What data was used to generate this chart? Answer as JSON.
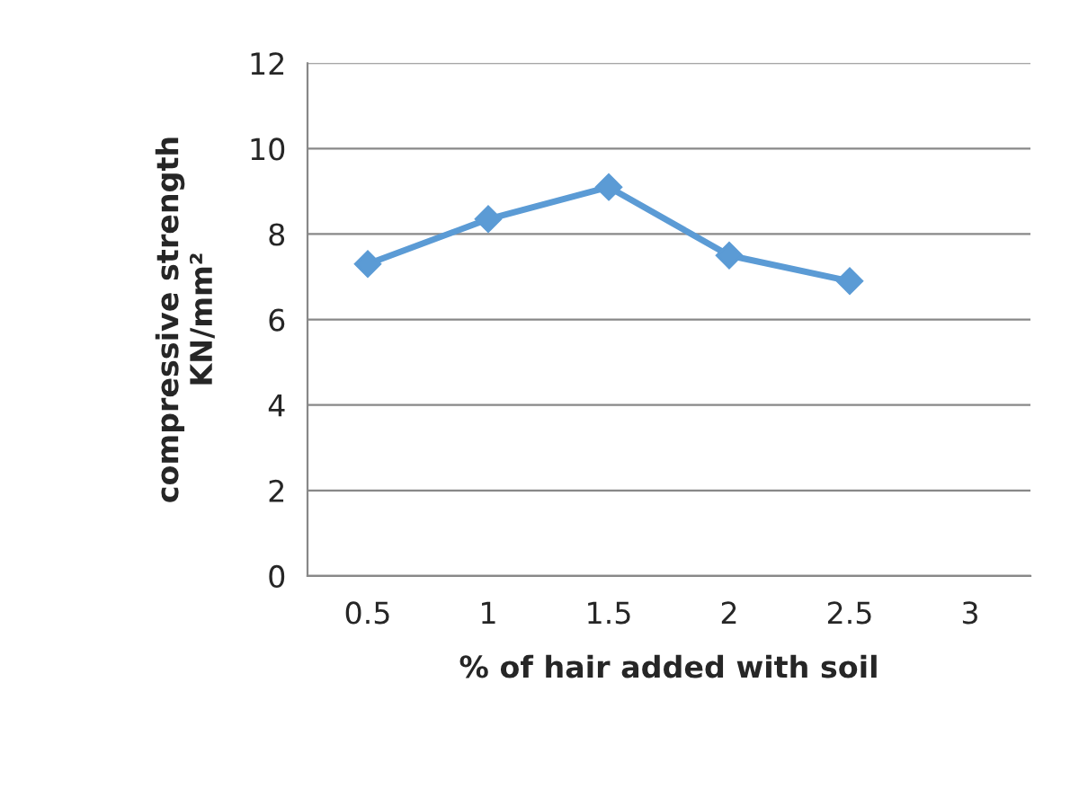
{
  "chart_data": {
    "type": "line",
    "xlabel": "% of hair added with soil",
    "ylabel": "compressive strength\nKN/mm²",
    "categories": [
      "0.5",
      "1",
      "1.5",
      "2",
      "2.5",
      "3"
    ],
    "series": [
      {
        "color": "#5b9bd5",
        "values": [
          7.3,
          8.35,
          9.1,
          7.5,
          6.9,
          null
        ]
      }
    ],
    "ylim": [
      0,
      12
    ],
    "yticks": [
      0,
      2,
      4,
      6,
      8,
      10,
      12
    ],
    "grid": "y",
    "marker": "diamond",
    "line_style": "solid",
    "legend": false
  }
}
